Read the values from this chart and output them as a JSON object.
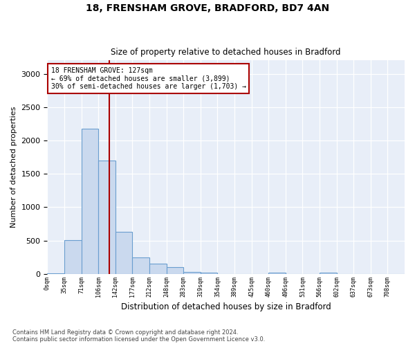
{
  "title1": "18, FRENSHAM GROVE, BRADFORD, BD7 4AN",
  "title2": "Size of property relative to detached houses in Bradford",
  "xlabel": "Distribution of detached houses by size in Bradford",
  "ylabel": "Number of detached properties",
  "bin_labels": [
    "0sqm",
    "35sqm",
    "71sqm",
    "106sqm",
    "142sqm",
    "177sqm",
    "212sqm",
    "248sqm",
    "283sqm",
    "319sqm",
    "354sqm",
    "389sqm",
    "425sqm",
    "460sqm",
    "496sqm",
    "531sqm",
    "566sqm",
    "602sqm",
    "637sqm",
    "673sqm",
    "708sqm"
  ],
  "bar_values": [
    8,
    510,
    2180,
    1700,
    630,
    250,
    155,
    105,
    30,
    20,
    0,
    0,
    0,
    20,
    0,
    0,
    20,
    0,
    0,
    0,
    0
  ],
  "bar_color": "#cad9ee",
  "bar_edge_color": "#6a9ecf",
  "property_line_color": "#aa0000",
  "annotation_text": "18 FRENSHAM GROVE: 127sqm\n← 69% of detached houses are smaller (3,899)\n30% of semi-detached houses are larger (1,703) →",
  "annotation_box_color": "#ffffff",
  "annotation_box_edge": "#aa0000",
  "ylim": [
    0,
    3200
  ],
  "yticks": [
    0,
    500,
    1000,
    1500,
    2000,
    2500,
    3000
  ],
  "footnote": "Contains HM Land Registry data © Crown copyright and database right 2024.\nContains public sector information licensed under the Open Government Licence v3.0.",
  "bg_color": "#e8eef8"
}
